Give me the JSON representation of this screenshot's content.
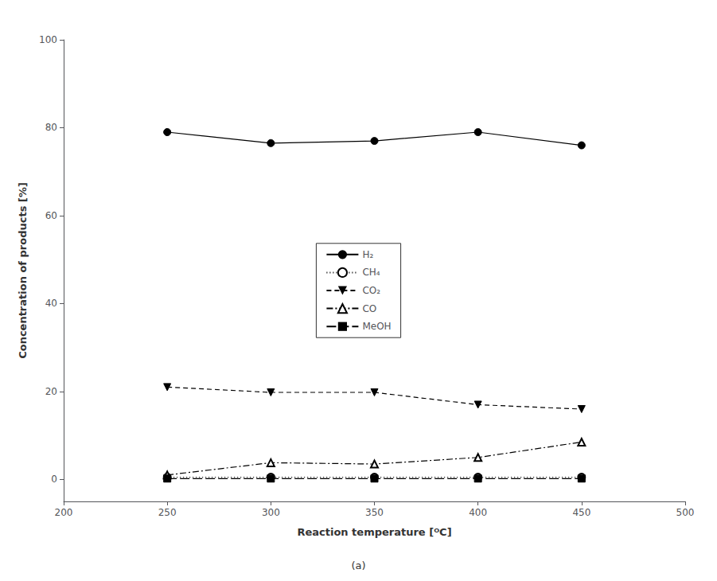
{
  "chart_data": {
    "type": "line",
    "subtitle": "(a)",
    "xlabel": "Reaction temperature [ᴼC]",
    "ylabel": "Concentration of products [%]",
    "x": [
      250,
      300,
      350,
      400,
      450
    ],
    "series": [
      {
        "name": "H₂",
        "color": "#000000",
        "marker": "circle",
        "line_style": "solid",
        "values": [
          79.0,
          76.5,
          77.0,
          79.0,
          76.0
        ]
      },
      {
        "name": "CH₄",
        "color": "#000000",
        "marker": "open_circle",
        "line_style": "dotted",
        "values": [
          0.5,
          0.5,
          0.5,
          0.5,
          0.5
        ]
      },
      {
        "name": "CO₂",
        "color": "#000000",
        "marker": "triangle_down",
        "line_style": "dashed",
        "values": [
          21.0,
          19.8,
          19.8,
          17.0,
          16.0
        ]
      },
      {
        "name": "CO",
        "color": "#000000",
        "marker": "open_triangle",
        "line_style": "dashdot",
        "values": [
          1.0,
          3.8,
          3.5,
          5.0,
          8.5
        ]
      },
      {
        "name": "MeOH",
        "color": "#000000",
        "marker": "square",
        "line_style": "longdash",
        "values": [
          0.2,
          0.2,
          0.2,
          0.2,
          0.2
        ]
      }
    ],
    "xlim": [
      200,
      500
    ],
    "ylim": [
      -5,
      100
    ],
    "xticks": [
      200,
      250,
      300,
      350,
      400,
      450,
      500
    ],
    "yticks": [
      0,
      20,
      40,
      60,
      80,
      100
    ],
    "grid": false,
    "legend": "center"
  }
}
